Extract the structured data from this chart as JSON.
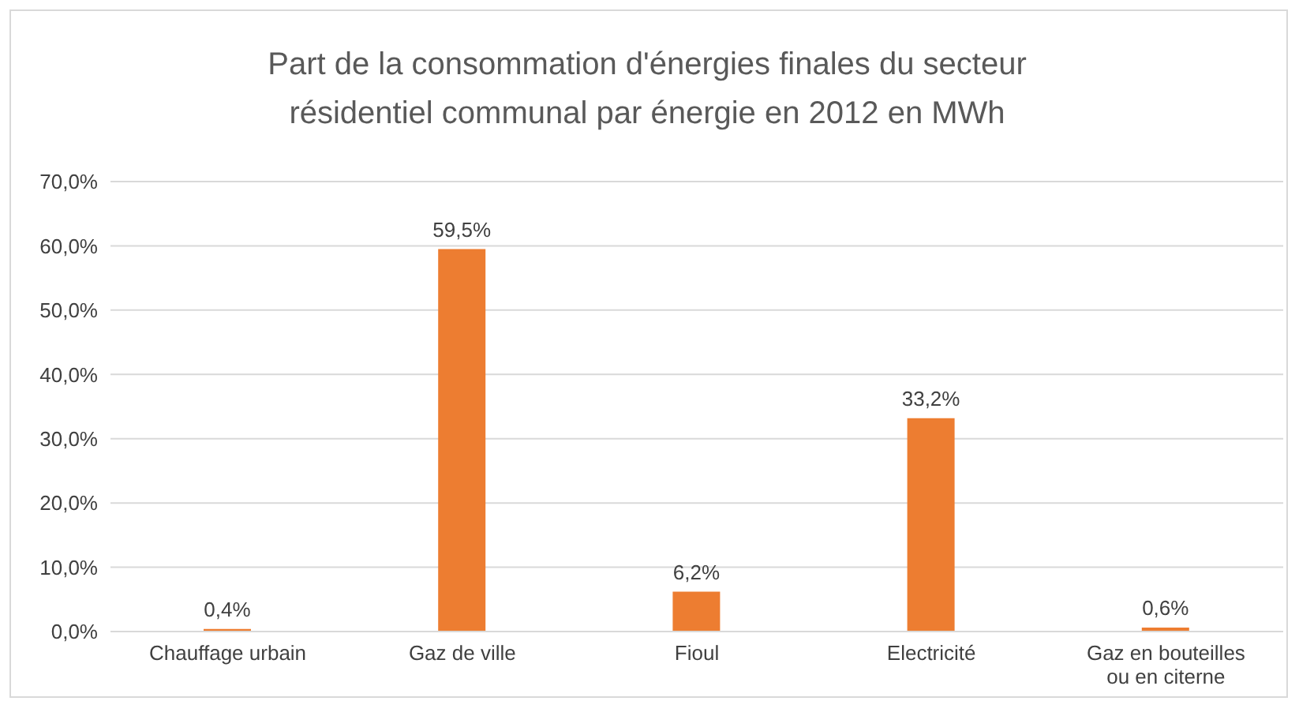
{
  "chart_data": {
    "type": "bar",
    "title": "Part de la consommation d'énergies finales du secteur résidentiel communal par énergie en 2012 en MWh",
    "categories": [
      "Chauffage urbain",
      "Gaz de ville",
      "Fioul",
      "Electricité",
      "Gaz en bouteilles ou en citerne"
    ],
    "values": [
      0.4,
      59.5,
      6.2,
      33.2,
      0.6
    ],
    "value_labels": [
      "0,4%",
      "59,5%",
      "6,2%",
      "33,2%",
      "0,6%"
    ],
    "color": "#ed7d31",
    "ylim": [
      0,
      70
    ],
    "yticks": [
      {
        "value": 0,
        "label": "0,0%"
      },
      {
        "value": 10,
        "label": "10,0%"
      },
      {
        "value": 20,
        "label": "20,0%"
      },
      {
        "value": 30,
        "label": "30,0%"
      },
      {
        "value": 40,
        "label": "40,0%"
      },
      {
        "value": 50,
        "label": "50,0%"
      },
      {
        "value": 60,
        "label": "60,0%"
      },
      {
        "value": 70,
        "label": "70,0%"
      }
    ],
    "grid": "y",
    "legend": false
  }
}
